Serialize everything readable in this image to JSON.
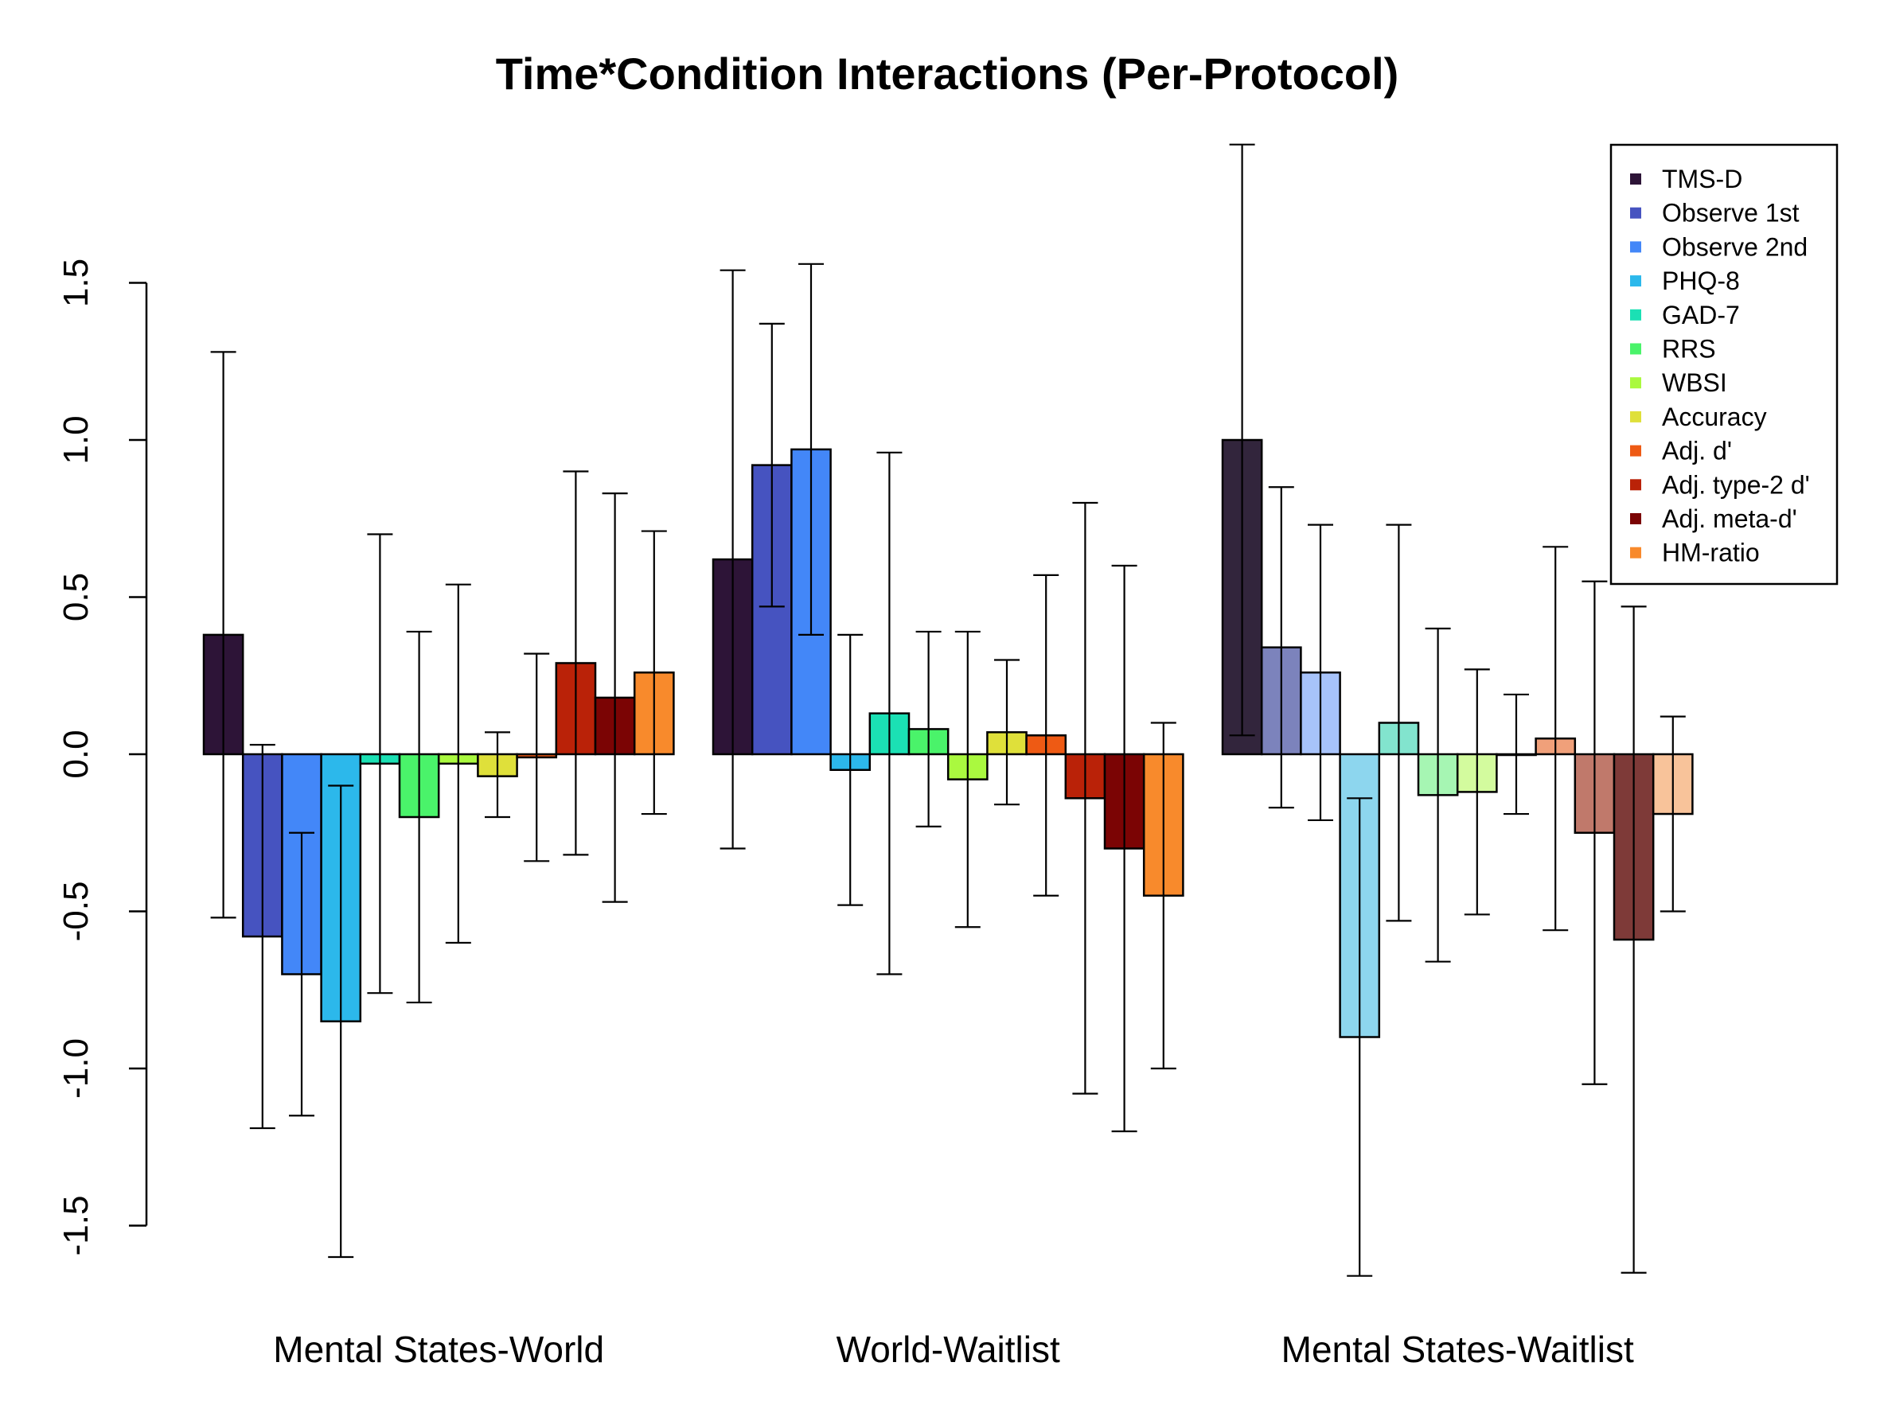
{
  "chart_data": {
    "type": "bar",
    "title": "Time*Condition Interactions (Per-Protocol)",
    "xlabel": "",
    "ylabel": "",
    "ylim": [
      -1.5,
      1.5
    ],
    "yticks": [
      -1.5,
      -1.0,
      -0.5,
      0.0,
      0.5,
      1.0,
      1.5
    ],
    "ytick_labels": [
      "-1.5",
      "-1.0",
      "-0.5",
      "0.0",
      "0.5",
      "1.0",
      "1.5"
    ],
    "legend_position": "top-right",
    "grid": false,
    "categories": [
      "Mental States-World",
      "World-Waitlist",
      "Mental States-Waitlist"
    ],
    "series": [
      {
        "name": "TMS-D",
        "color": "#2D1437",
        "colors": [
          "#2D1437",
          "#2D1437",
          "#32253C"
        ],
        "values": [
          0.38,
          0.62,
          1.0
        ],
        "lower": [
          -0.52,
          -0.3,
          0.06
        ],
        "upper": [
          1.28,
          1.54,
          1.94
        ]
      },
      {
        "name": "Observe 1st",
        "color": "#4653C0",
        "colors": [
          "#4653C0",
          "#4653C0",
          "#7C83BC"
        ],
        "values": [
          -0.58,
          0.92,
          0.34
        ],
        "lower": [
          -1.19,
          0.47,
          -0.17
        ],
        "upper": [
          0.03,
          1.37,
          0.85
        ]
      },
      {
        "name": "Observe 2nd",
        "color": "#4387F8",
        "colors": [
          "#4387F8",
          "#4387F8",
          "#A7C3FA"
        ],
        "values": [
          -0.7,
          0.97,
          0.26
        ],
        "lower": [
          -1.15,
          0.38,
          -0.21
        ],
        "upper": [
          -0.25,
          1.56,
          0.73
        ]
      },
      {
        "name": "PHQ-8",
        "color": "#2CB8EB",
        "colors": [
          "#2CB8EB",
          "#2CB8EB",
          "#8DD6EE"
        ],
        "values": [
          -0.85,
          -0.05,
          -0.9
        ],
        "lower": [
          -1.6,
          -0.48,
          -1.66
        ],
        "upper": [
          -0.1,
          0.38,
          -0.14
        ]
      },
      {
        "name": "GAD-7",
        "color": "#1BE0B4",
        "colors": [
          "#1BE0B4",
          "#1BE0B4",
          "#82E4CE"
        ],
        "values": [
          -0.03,
          0.13,
          0.1
        ],
        "lower": [
          -0.76,
          -0.7,
          -0.53
        ],
        "upper": [
          0.7,
          0.96,
          0.73
        ]
      },
      {
        "name": "RRS",
        "color": "#4AF36A",
        "colors": [
          "#4AF36A",
          "#4AF36A",
          "#A6F6B3"
        ],
        "values": [
          -0.2,
          0.08,
          -0.13
        ],
        "lower": [
          -0.79,
          -0.23,
          -0.66
        ],
        "upper": [
          0.39,
          0.39,
          0.4
        ]
      },
      {
        "name": "WBSI",
        "color": "#AAF93F",
        "colors": [
          "#AAF93F",
          "#AAF93F",
          "#D3FB9E"
        ],
        "values": [
          -0.03,
          -0.08,
          -0.12
        ],
        "lower": [
          -0.6,
          -0.55,
          -0.51
        ],
        "upper": [
          0.54,
          0.39,
          0.27
        ]
      },
      {
        "name": "Accuracy",
        "color": "#DFE03A",
        "colors": [
          "#DFE03A",
          "#DFE03A",
          "#EEEE9E"
        ],
        "values": [
          -0.07,
          0.07,
          0.0
        ],
        "lower": [
          -0.2,
          -0.16,
          -0.19
        ],
        "upper": [
          0.07,
          0.3,
          0.19
        ]
      },
      {
        "name": "Adj. d'",
        "color": "#EE5A14",
        "colors": [
          "#EE5A14",
          "#EE5A14",
          "#F0A07A"
        ],
        "values": [
          -0.01,
          0.06,
          0.05
        ],
        "lower": [
          -0.34,
          -0.45,
          -0.56
        ],
        "upper": [
          0.32,
          0.57,
          0.66
        ]
      },
      {
        "name": "Adj. type-2 d'",
        "color": "#BA2208",
        "colors": [
          "#BA2208",
          "#BA2208",
          "#C0796B"
        ],
        "values": [
          0.29,
          -0.14,
          -0.25
        ],
        "lower": [
          -0.32,
          -1.08,
          -1.05
        ],
        "upper": [
          0.9,
          0.8,
          0.55
        ]
      },
      {
        "name": "Adj. meta-d'",
        "color": "#7B0404",
        "colors": [
          "#7B0404",
          "#7B0404",
          "#7E3A38"
        ],
        "values": [
          0.18,
          -0.3,
          -0.59
        ],
        "lower": [
          -0.47,
          -1.2,
          -1.65
        ],
        "upper": [
          0.83,
          0.6,
          0.47
        ]
      },
      {
        "name": "HM-ratio",
        "color": "#F88A2C",
        "colors": [
          "#F88A2C",
          "#F88A2C",
          "#F8C39A"
        ],
        "values": [
          0.26,
          -0.45,
          -0.19
        ],
        "lower": [
          -0.19,
          -1.0,
          -0.5
        ],
        "upper": [
          0.71,
          0.1,
          0.12
        ]
      }
    ]
  }
}
